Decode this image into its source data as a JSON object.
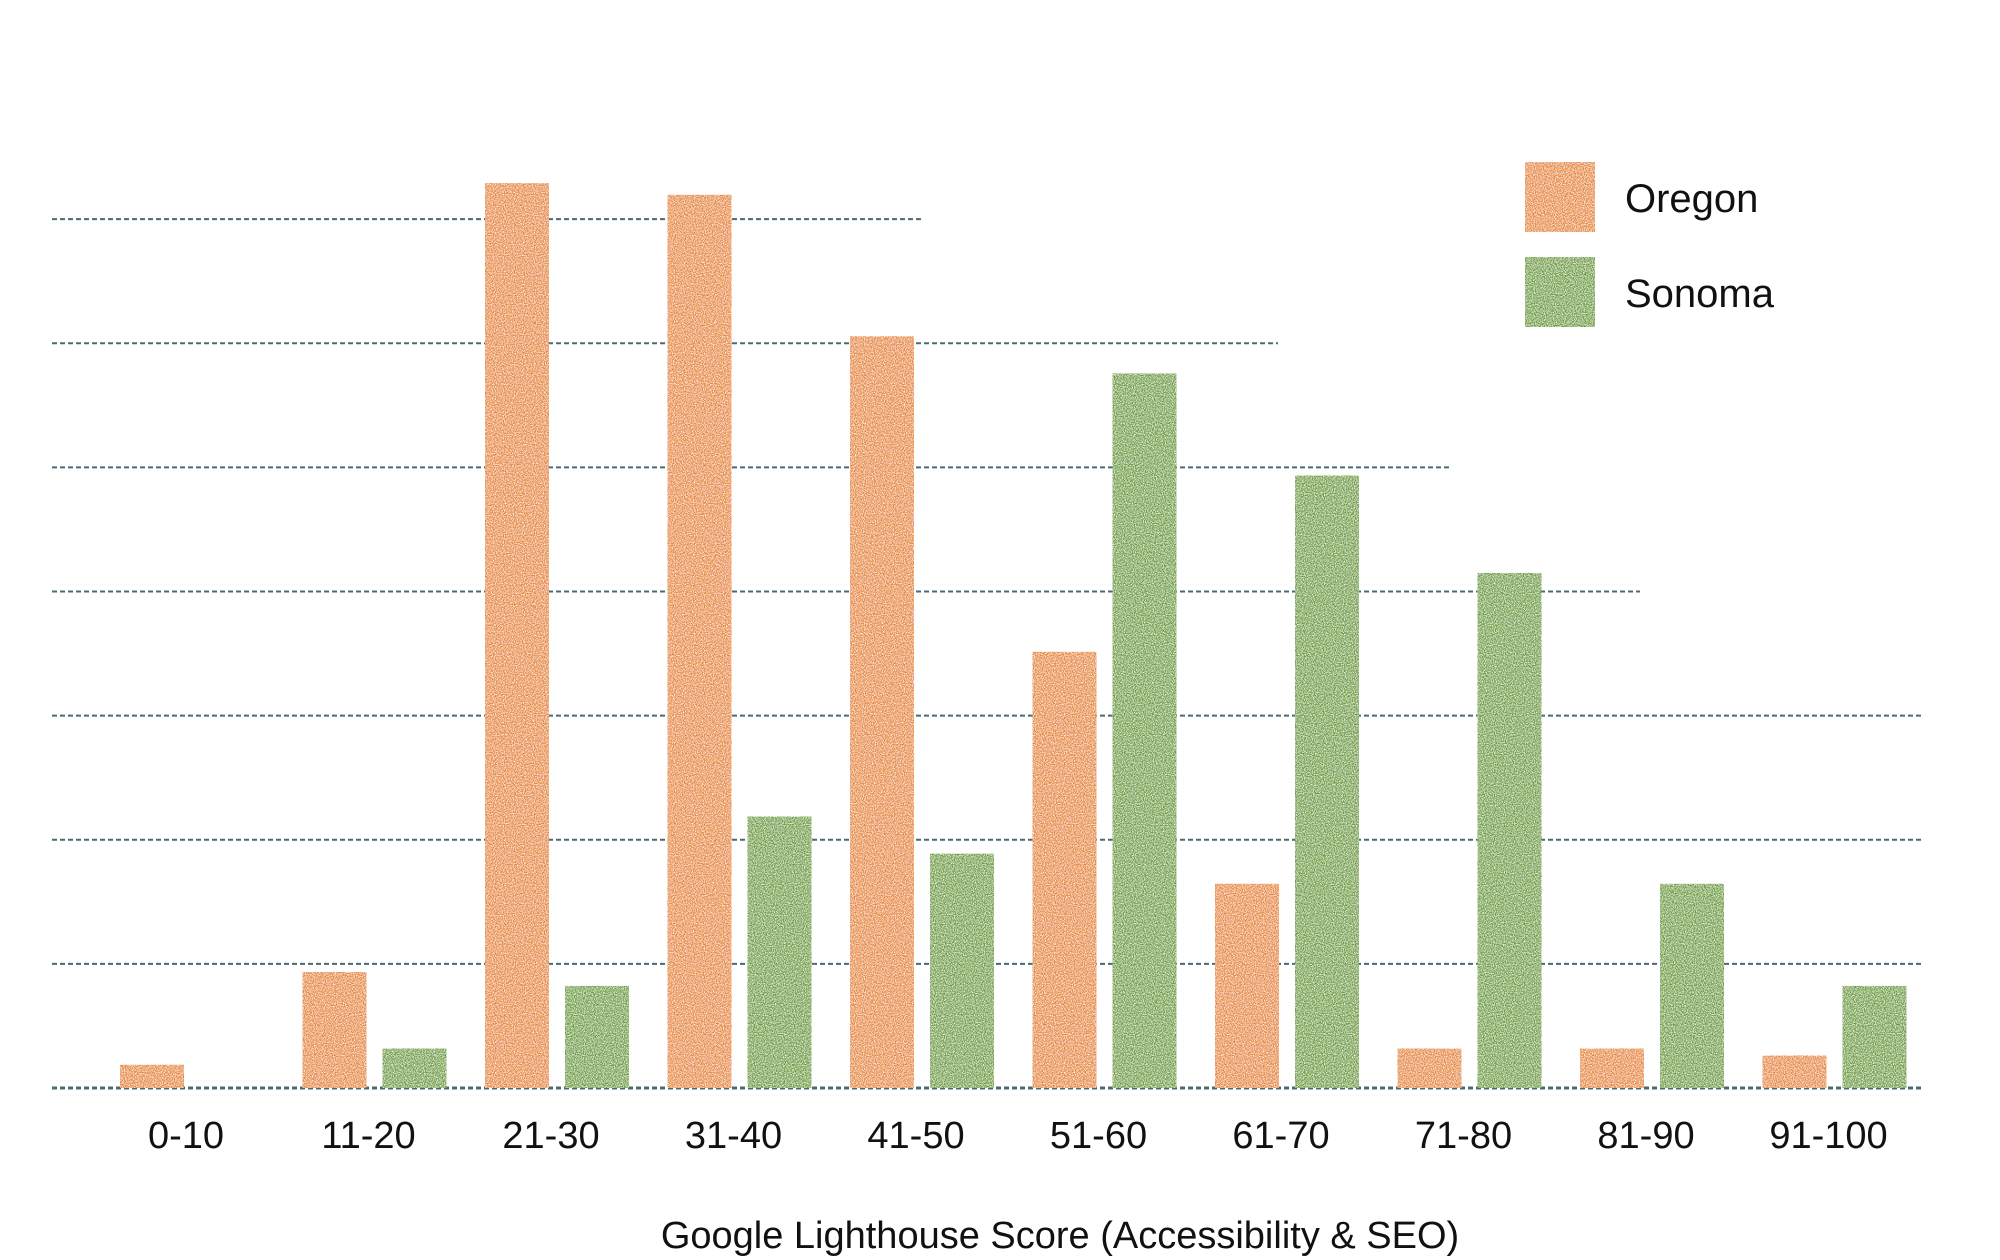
{
  "chart_data": {
    "type": "bar",
    "title": "",
    "xlabel": "Google Lighthouse Score (Accessibility & SEO)",
    "ylabel": "",
    "categories": [
      "0-10",
      "11-20",
      "21-30",
      "31-40",
      "41-50",
      "51-60",
      "61-70",
      "71-80",
      "81-90",
      "91-100"
    ],
    "series": [
      {
        "name": "Oregon",
        "color": "#E8872A",
        "values": [
          1,
          5,
          39,
          38.5,
          32.4,
          18.8,
          8.8,
          1.7,
          1.7,
          1.4
        ]
      },
      {
        "name": "Sonoma",
        "color": "#6A9E2E",
        "values": [
          0,
          1.7,
          4.4,
          11.7,
          10.1,
          30.8,
          26.4,
          22.2,
          8.8,
          4.4
        ]
      }
    ],
    "ylim": [
      0,
      40
    ],
    "y_gridlines": [
      0,
      5.35,
      10.7,
      16.05,
      21.4,
      26.75,
      32.1,
      37.45
    ],
    "y_tick_labels_shown": false,
    "grid": true,
    "grid_color": "#4A6B73",
    "legend_position": "top-right"
  }
}
